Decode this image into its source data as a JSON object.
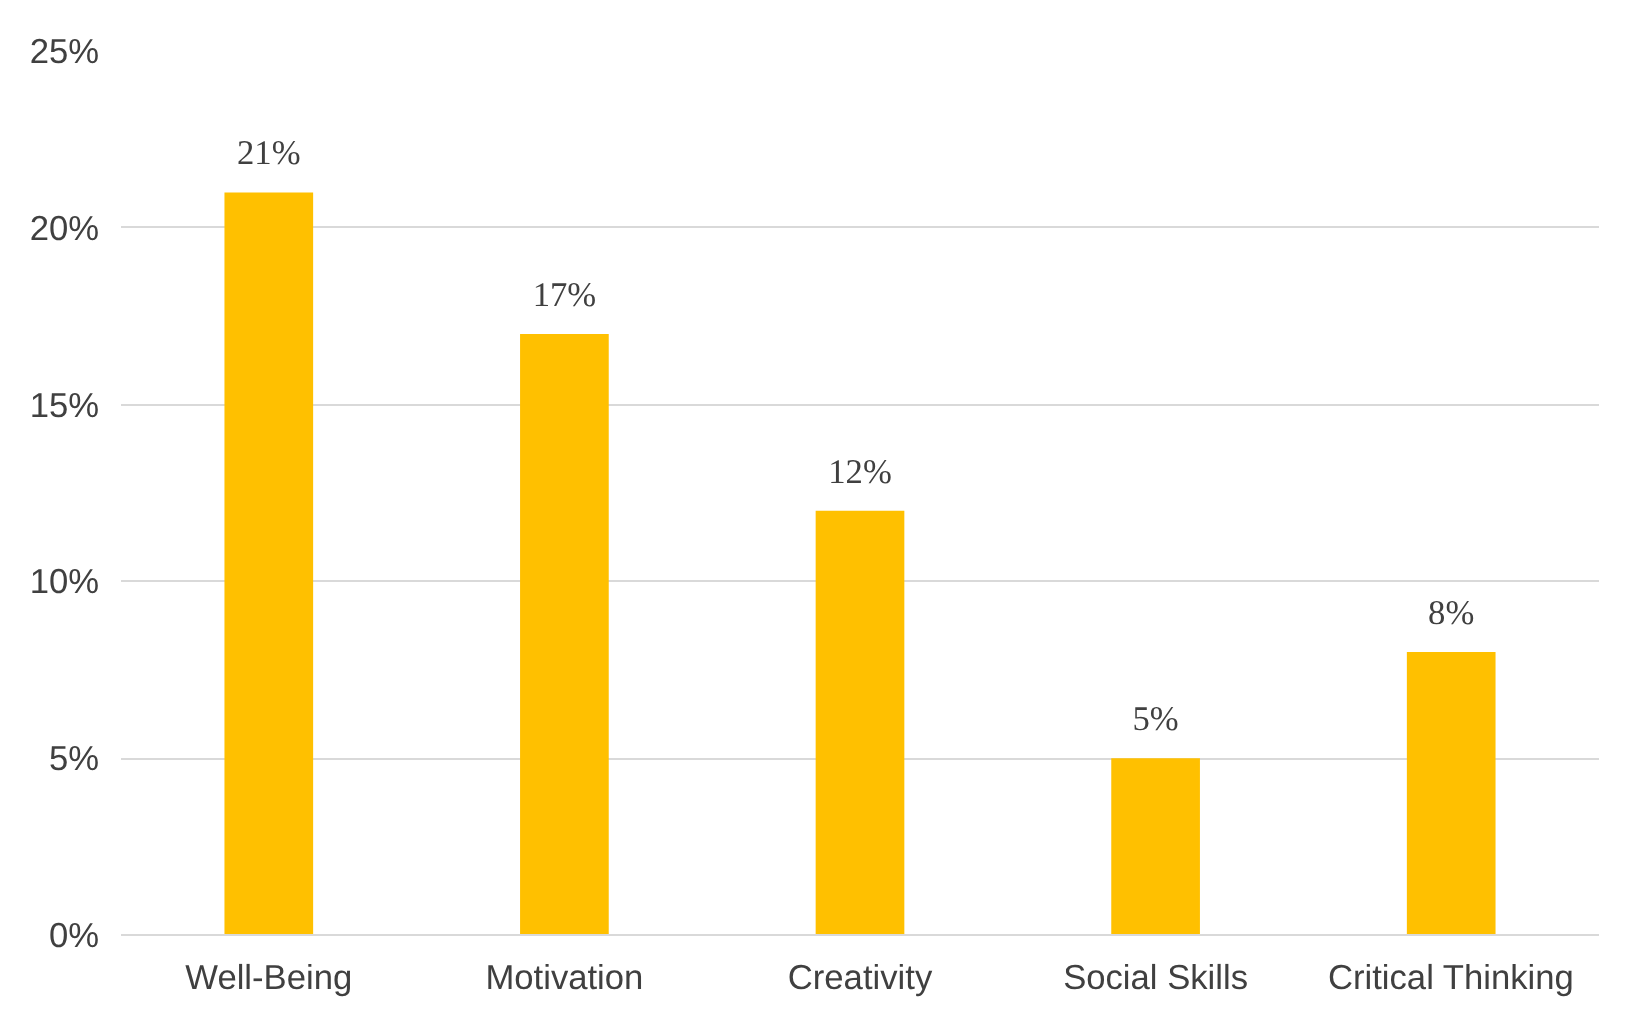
{
  "chart_data": {
    "type": "bar",
    "categories": [
      "Well-Being",
      "Motivation",
      "Creativity",
      "Social Skills",
      "Critical Thinking"
    ],
    "values": [
      21,
      17,
      12,
      5,
      8
    ],
    "value_labels": [
      "21%",
      "17%",
      "12%",
      "5%",
      "8%"
    ],
    "color": "#ffc000",
    "ylim": [
      0,
      25
    ],
    "yticks": [
      {
        "value": 0,
        "label": "0%"
      },
      {
        "value": 5,
        "label": "5%"
      },
      {
        "value": 10,
        "label": "10%"
      },
      {
        "value": 15,
        "label": "15%"
      },
      {
        "value": 20,
        "label": "20%"
      },
      {
        "value": 25,
        "label": "25%"
      }
    ],
    "grid": "y"
  }
}
